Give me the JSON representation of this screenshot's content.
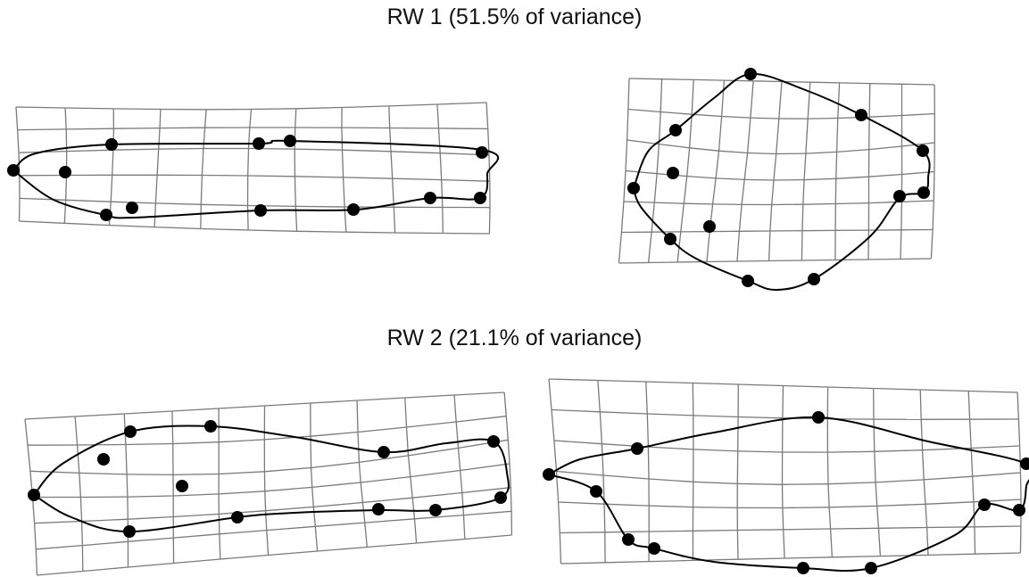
{
  "figure": {
    "panels": [
      {
        "heading": "RW 1 (51.5% of variance)"
      },
      {
        "heading": "RW 2 (21.1% of variance)"
      }
    ]
  }
}
